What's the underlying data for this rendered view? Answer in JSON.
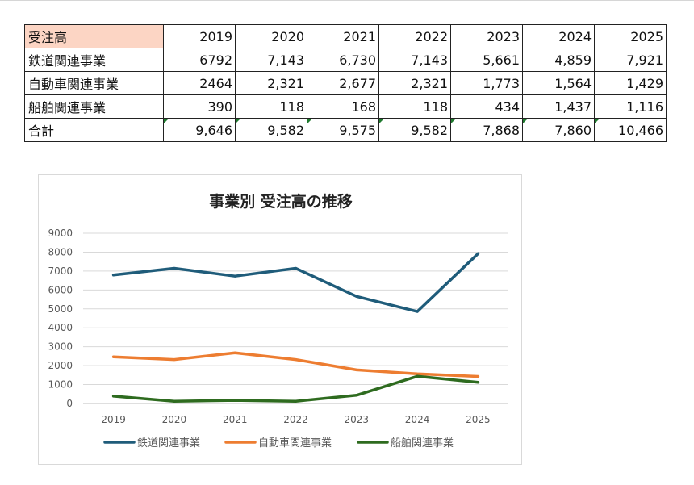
{
  "table": {
    "header": {
      "label": "受注高",
      "years": [
        "2019",
        "2020",
        "2021",
        "2022",
        "2023",
        "2024",
        "2025"
      ]
    },
    "rows": [
      {
        "label": "鉄道関連事業",
        "cells": [
          "6792",
          "7,143",
          "6,730",
          "7,143",
          "5,661",
          "4,859",
          "7,921"
        ],
        "flags": [
          false,
          false,
          false,
          false,
          false,
          false,
          false
        ]
      },
      {
        "label": "自動車関連事業",
        "cells": [
          "2464",
          "2,321",
          "2,677",
          "2,321",
          "1,773",
          "1,564",
          "1,429"
        ],
        "flags": [
          false,
          false,
          false,
          false,
          false,
          false,
          false
        ]
      },
      {
        "label": "船舶関連事業",
        "cells": [
          "390",
          "118",
          "168",
          "118",
          "434",
          "1,437",
          "1,116"
        ],
        "flags": [
          false,
          false,
          false,
          false,
          false,
          false,
          false
        ]
      },
      {
        "label": "合計",
        "cells": [
          "9,646",
          "9,582",
          "9,575",
          "9,582",
          "7,868",
          "7,860",
          "10,466"
        ],
        "flags": [
          true,
          true,
          true,
          true,
          true,
          true,
          true
        ]
      }
    ]
  },
  "chart_data": {
    "type": "line",
    "title": "事業別 受注高の推移",
    "categories": [
      "2019",
      "2020",
      "2021",
      "2022",
      "2023",
      "2024",
      "2025"
    ],
    "ylim": [
      0,
      9000
    ],
    "yticks": [
      0,
      1000,
      2000,
      3000,
      4000,
      5000,
      6000,
      7000,
      8000,
      9000
    ],
    "grid": true,
    "legend": "bottom",
    "series": [
      {
        "name": "鉄道関連事業",
        "color": "#1f5c7a",
        "values": [
          6792,
          7143,
          6730,
          7143,
          5661,
          4859,
          7921
        ]
      },
      {
        "name": "自動車関連事業",
        "color": "#ed7d31",
        "values": [
          2464,
          2321,
          2677,
          2321,
          1773,
          1564,
          1429
        ]
      },
      {
        "name": "船舶関連事業",
        "color": "#2e6b1f",
        "values": [
          390,
          118,
          168,
          118,
          434,
          1437,
          1116
        ]
      }
    ]
  }
}
